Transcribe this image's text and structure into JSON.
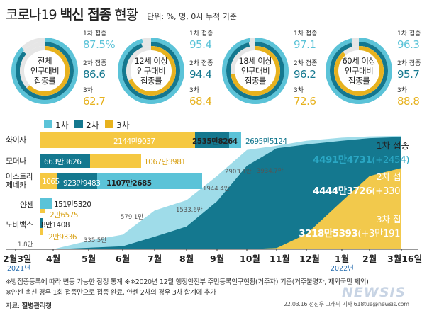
{
  "title": {
    "prefix": "코로나19",
    "bold": "백신 접종",
    "suffix": "현황",
    "unit": "단위: %, 명, 0시 누적 기준"
  },
  "colors": {
    "dose1": "#5bc3d8",
    "dose2": "#14788f",
    "dose3": "#e7b21e"
  },
  "rings": [
    {
      "label_lines": [
        "전체",
        "인구대비",
        "접종률"
      ],
      "dose1_label": "1차 접종",
      "dose1": "87.5%",
      "dose2_label": "2차 접종",
      "dose2": "86.6",
      "dose3_label": "3차",
      "dose3": "62.7",
      "values": [
        87.5,
        86.6,
        62.7
      ]
    },
    {
      "label_lines": [
        "12세 이상",
        "인구대비",
        "접종률"
      ],
      "dose1_label": "1차 접종",
      "dose1": "95.4",
      "dose2_label": "2차 접종",
      "dose2": "94.4",
      "dose3_label": "3차",
      "dose3": "68.4",
      "values": [
        95.4,
        94.4,
        68.4
      ]
    },
    {
      "label_lines": [
        "18세 이상",
        "인구대비",
        "접종률"
      ],
      "dose1_label": "1차 접종",
      "dose1": "97.1",
      "dose2_label": "2차 접종",
      "dose2": "96.2",
      "dose3_label": "3차",
      "dose3": "72.6",
      "values": [
        97.1,
        96.2,
        72.6
      ]
    },
    {
      "label_lines": [
        "60세 이상",
        "인구대비",
        "접종률"
      ],
      "dose1_label": "1차 접종",
      "dose1": "96.3",
      "dose2_label": "2차 접종",
      "dose2": "95.7",
      "dose3_label": "3차",
      "dose3": "88.8",
      "values": [
        96.3,
        95.7,
        88.8
      ]
    }
  ],
  "legend": [
    "1차",
    "2차",
    "3차"
  ],
  "vaccines": [
    {
      "name": "화이자",
      "dose3": "2144만9037",
      "dose2": "2535만8264",
      "dose1": "2695만5124",
      "dose3_v": 21449037,
      "dose2_v": 25358264,
      "dose1_v": 26955124
    },
    {
      "name": "모더나",
      "dose2": "663만3626",
      "dose3": "1067만3981",
      "dose2_v": 6633626,
      "dose3_v": 10673981
    },
    {
      "name_lines": [
        "아스트라",
        "제네카"
      ],
      "dose3": "1065",
      "dose2": "923만9483",
      "dose1": "1107만2685",
      "dose3_v": 1065,
      "dose2_v": 9239483,
      "dose1_v": 11072685
    },
    {
      "name": "얀센",
      "dose1": "151만5320",
      "dose3": "2만6575",
      "dose1_v": 1515320,
      "dose3_v": 26575
    },
    {
      "name": "노바백스",
      "dose1": "8만1408",
      "dose2": "2만9336",
      "dose1_v": 81408,
      "dose2_v": 29336
    }
  ],
  "totals": {
    "dose1_label": "1차 접종",
    "dose1_value": "4491만4731",
    "dose1_delta": "(+2454)",
    "dose2_label": "2차 접종",
    "dose2_value": "4444만3726",
    "dose2_delta": "(+3302)",
    "dose3_label": "3차 접종",
    "dose3_value": "3218만5393",
    "dose3_delta": "(+3만1919)"
  },
  "chart_data": {
    "type": "area",
    "x_labels": [
      "2월3일",
      "4월",
      "5월",
      "6월",
      "7월",
      "8월",
      "9월",
      "10월",
      "11월",
      "12월",
      "1월",
      "2월",
      "3월16일"
    ],
    "year_labels": [
      "2021년",
      "2022년"
    ],
    "x": [
      0,
      2,
      3,
      4,
      5,
      6,
      7,
      8,
      9,
      10,
      11,
      12,
      13.5
    ],
    "series": [
      {
        "name": "1차",
        "values": [
          0,
          1.8,
          335.5,
          579.1,
          1533.6,
          1944.4,
          2903.1,
          3934.7,
          4100,
          4300,
          4420,
          4470,
          4491.5
        ]
      },
      {
        "name": "2차",
        "values": [
          0,
          0.5,
          60,
          120,
          500,
          900,
          1900,
          3300,
          4000,
          4150,
          4300,
          4400,
          4444.4
        ]
      },
      {
        "name": "3차",
        "values": [
          0,
          0,
          0,
          0,
          0,
          0,
          0,
          0,
          50,
          600,
          1900,
          2900,
          3218.5
        ]
      }
    ],
    "annotations": [
      "1.8만",
      "335.5만",
      "579.1만",
      "1533.6만",
      "1944.4만",
      "2903.1만",
      "3934.7만"
    ],
    "ylim": [
      0,
      4600
    ]
  },
  "notes": [
    "※방접종등록에 따라 변동 가능한 잠정 통계  ※※2020년 12월 행정안전부 주민등록인구현황(거주자) 기준(거주불명자, 재외국민 제외)",
    "※얀센 백신 경우 1회 접종만으로 접종 완료, 얀센 2차의 경우 3차 합계에 추가"
  ],
  "source_label": "자료:",
  "source": "질병관리청",
  "credit": "22.03.16 전진우 그래픽 기자 618tue@newsis.com",
  "logo": "NEWSIS"
}
